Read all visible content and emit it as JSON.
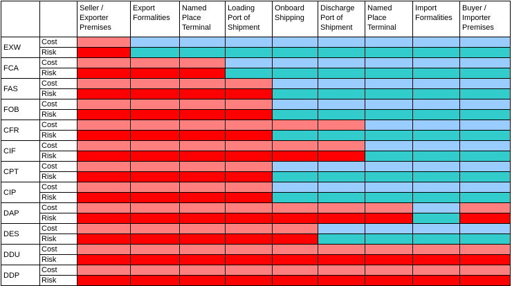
{
  "header": {
    "corner_1": "",
    "corner_2": "",
    "stages": [
      "Seller / Exporter Premises",
      "Export Formalities",
      "Named Place Terminal",
      "Loading Port of Shipment",
      "Onboard Shipping",
      "Discharge Port of Shipment",
      "Named Place Terminal",
      "Import Formalities",
      "Buyer / Importer Premises"
    ]
  },
  "colors": {
    "seller_cost": "#ff7f7f",
    "seller_risk": "#ff0000",
    "buyer_cost": "#99ccff",
    "buyer_risk": "#33cccc"
  },
  "legend_codes": {
    "seller": "S",
    "buyer": "B"
  },
  "rows": [
    {
      "term": "EXW",
      "cost_label": "Cost",
      "risk_label": "Risk",
      "cost": "SBBBBBBBB",
      "risk": "SBBBBBBBB"
    },
    {
      "term": "FCA",
      "cost_label": "Cost",
      "risk_label": "Risk",
      "cost": "SSSBBBBBB",
      "risk": "SSSBBBBBB"
    },
    {
      "term": "FAS",
      "cost_label": "Cost",
      "risk_label": "Risk",
      "cost": "SSSSBBBBB",
      "risk": "SSSSBBBBB"
    },
    {
      "term": "FOB",
      "cost_label": "Cost",
      "risk_label": "Risk",
      "cost": "SSSSBBBBB",
      "risk": "SSSSBBBBB"
    },
    {
      "term": "CFR",
      "cost_label": "Cost",
      "risk_label": "Risk",
      "cost": "SSSSSSBBB",
      "risk": "SSSSBBBBB"
    },
    {
      "term": "CIF",
      "cost_label": "Cost",
      "risk_label": "Risk",
      "cost": "SSSSSSBBB",
      "risk": "SSSSSSBBB"
    },
    {
      "term": "CPT",
      "cost_label": "Cost",
      "risk_label": "Risk",
      "cost": "SSSSBBBBB",
      "risk": "SSSSBBBBB"
    },
    {
      "term": "CIP",
      "cost_label": "Cost",
      "risk_label": "Risk",
      "cost": "SSSSBBBBB",
      "risk": "SSSSBBBBB"
    },
    {
      "term": "DAP",
      "cost_label": "Cost",
      "risk_label": "Risk",
      "cost": "SSSSSSSBS",
      "risk": "SSSSSSSBS"
    },
    {
      "term": "DES",
      "cost_label": "Cost",
      "risk_label": "Risk",
      "cost": "SSSSSBBBB",
      "risk": "SSSSSBBBB"
    },
    {
      "term": "DDU",
      "cost_label": "Cost",
      "risk_label": "Risk",
      "cost": "SSSSSSSSS",
      "risk": "SSSSSSSSS"
    },
    {
      "term": "DDP",
      "cost_label": "Cost",
      "risk_label": "Risk",
      "cost": "SSSSSSSSS",
      "risk": "SSSSSSSSS"
    }
  ]
}
